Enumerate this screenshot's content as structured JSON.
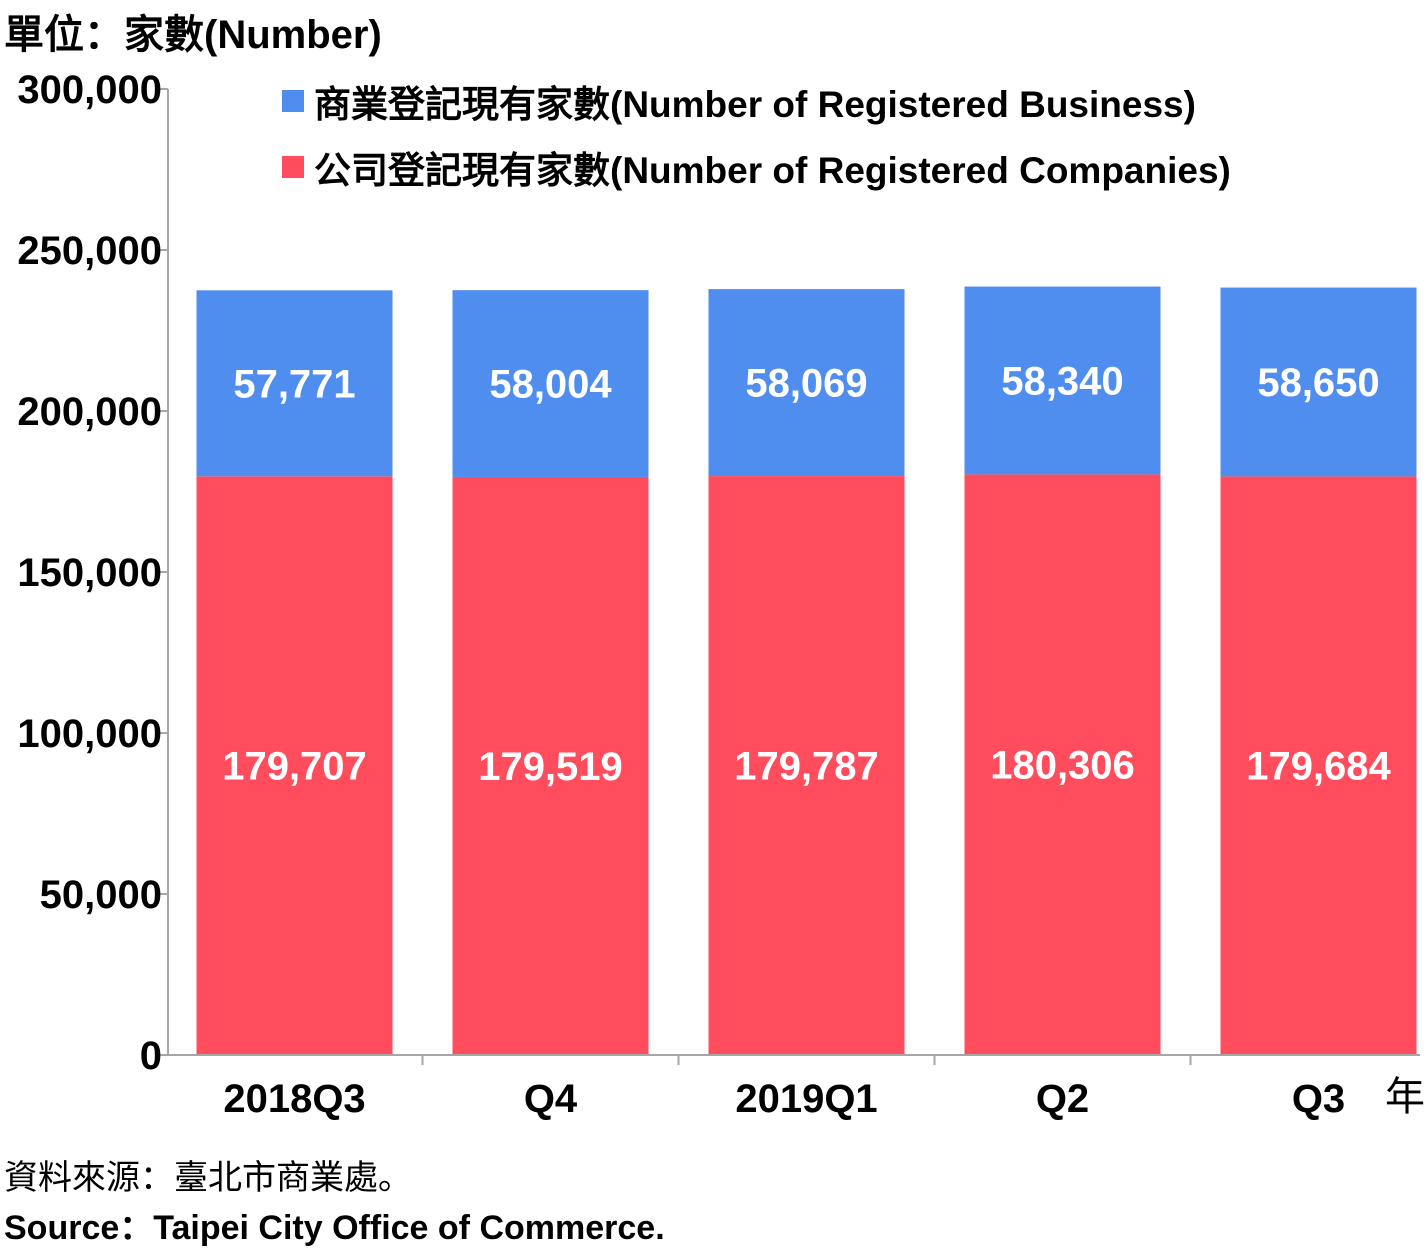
{
  "unit_label": "單位：家數(Number)",
  "source_zh": "資料來源：臺北市商業處。",
  "source_en": "Source：Taipei City Office of Commerce.",
  "x_unit": "年",
  "colors": {
    "business": "#4f8def",
    "companies": "#ff4d5e",
    "axis": "#a6a6a6"
  },
  "chart_data": {
    "type": "bar",
    "stacked": true,
    "categories": [
      "2018Q3",
      "Q4",
      "2019Q1",
      "Q2",
      "Q3"
    ],
    "series": [
      {
        "name": "公司登記現有家數(Number of Registered Companies)",
        "color": "#ff4d5e",
        "values": [
          179707,
          179519,
          179787,
          180306,
          179684
        ],
        "labels": [
          "179,707",
          "179,519",
          "179,787",
          "180,306",
          "179,684"
        ]
      },
      {
        "name": "商業登記現有家數(Number of Registered Business)",
        "color": "#4f8def",
        "values": [
          57771,
          58004,
          58069,
          58340,
          58650
        ],
        "labels": [
          "57,771",
          "58,004",
          "58,069",
          "58,340",
          "58,650"
        ]
      }
    ],
    "legend_order": [
      "商業登記現有家數(Number of Registered Business)",
      "公司登記現有家數(Number of Registered Companies)"
    ],
    "legend_position": "top",
    "ylim": [
      0,
      300000
    ],
    "yticks": [
      0,
      50000,
      100000,
      150000,
      200000,
      250000,
      300000
    ],
    "ytick_labels": [
      "0",
      "50,000",
      "100,000",
      "150,000",
      "200,000",
      "250,000",
      "300,000"
    ],
    "grid": false
  }
}
